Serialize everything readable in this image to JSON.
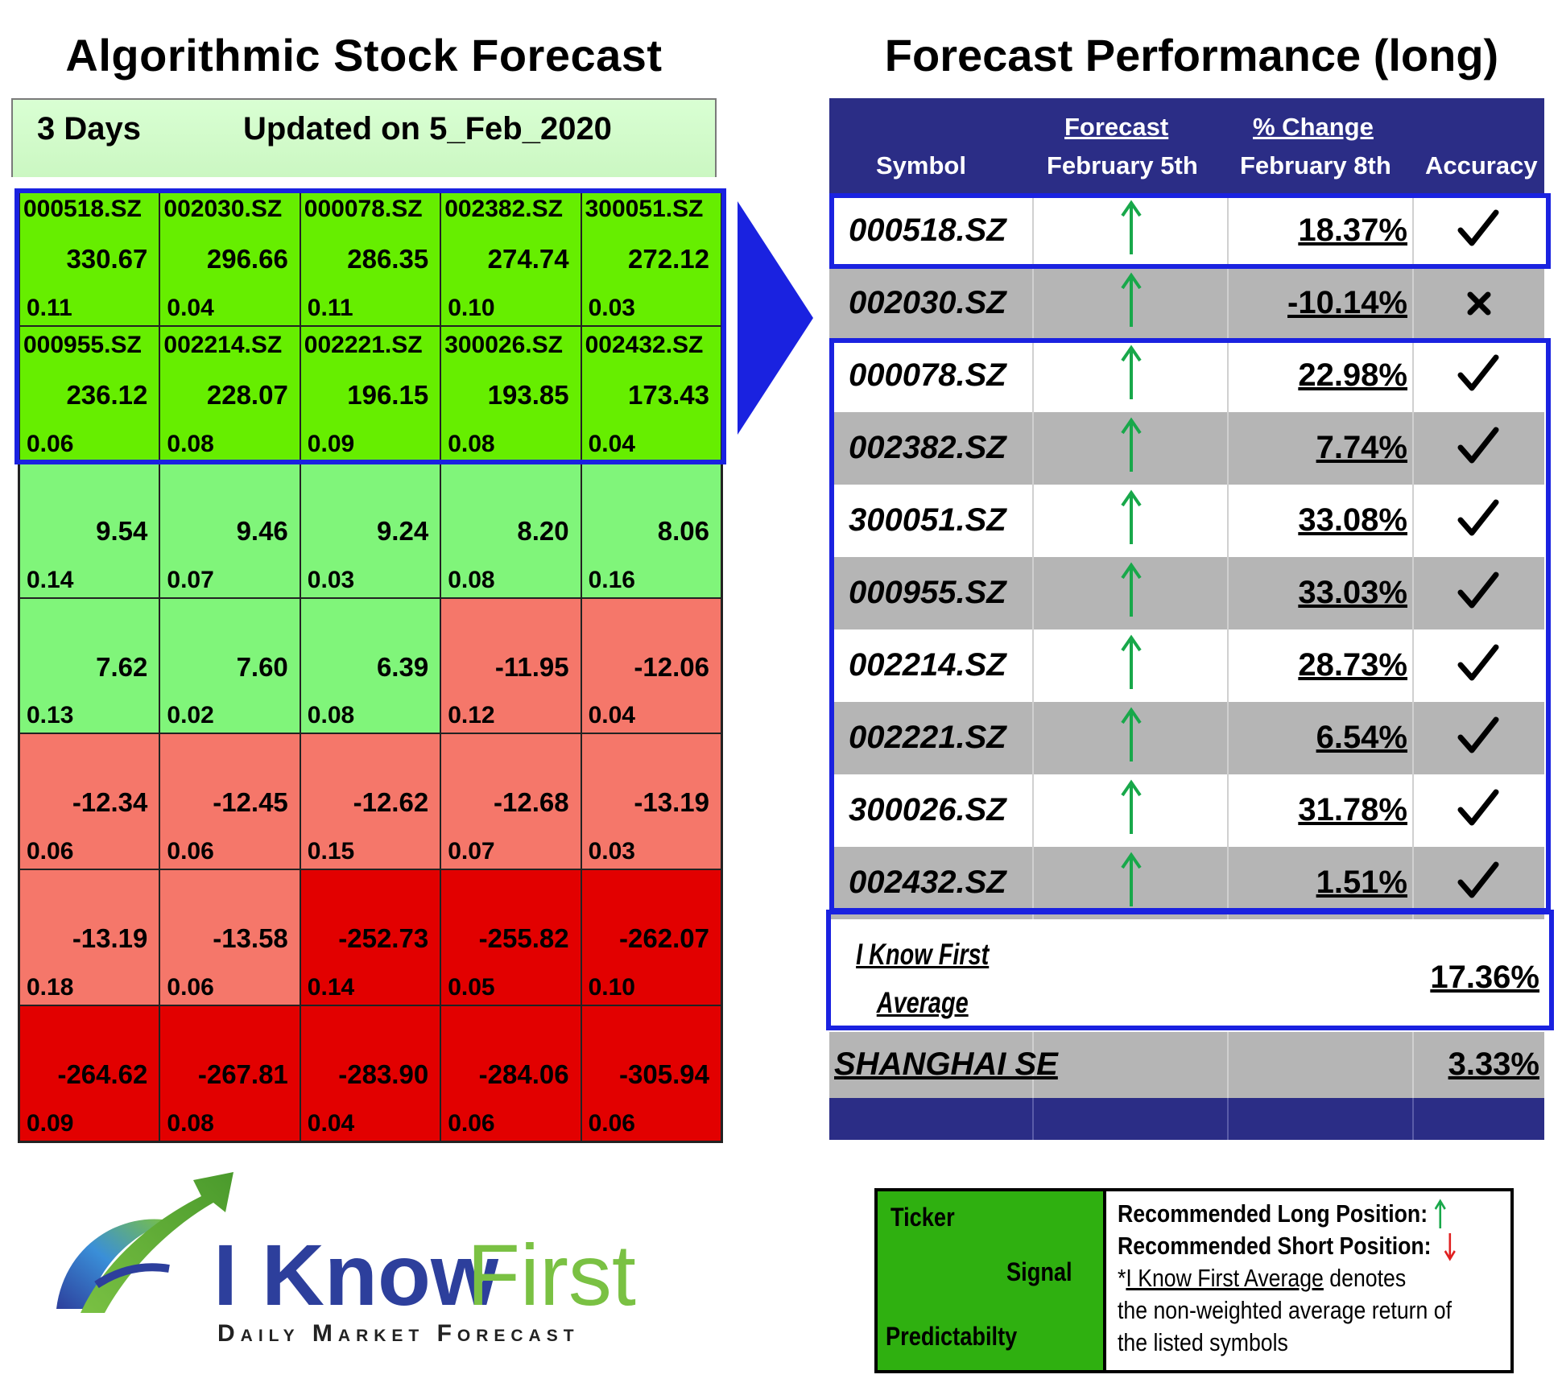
{
  "left": {
    "title": "Algorithmic Stock Forecast",
    "horizon": "3 Days",
    "updated": "Updated on 5_Feb_2020",
    "cells": [
      {
        "ticker": "000518.SZ",
        "signal": "330.67",
        "predictability": "0.11",
        "color": "bright"
      },
      {
        "ticker": "002030.SZ",
        "signal": "296.66",
        "predictability": "0.04",
        "color": "bright"
      },
      {
        "ticker": "000078.SZ",
        "signal": "286.35",
        "predictability": "0.11",
        "color": "bright"
      },
      {
        "ticker": "002382.SZ",
        "signal": "274.74",
        "predictability": "0.10",
        "color": "bright"
      },
      {
        "ticker": "300051.SZ",
        "signal": "272.12",
        "predictability": "0.03",
        "color": "bright"
      },
      {
        "ticker": "000955.SZ",
        "signal": "236.12",
        "predictability": "0.06",
        "color": "bright"
      },
      {
        "ticker": "002214.SZ",
        "signal": "228.07",
        "predictability": "0.08",
        "color": "bright"
      },
      {
        "ticker": "002221.SZ",
        "signal": "196.15",
        "predictability": "0.09",
        "color": "bright"
      },
      {
        "ticker": "300026.SZ",
        "signal": "193.85",
        "predictability": "0.08",
        "color": "bright"
      },
      {
        "ticker": "002432.SZ",
        "signal": "173.43",
        "predictability": "0.04",
        "color": "bright"
      },
      {
        "ticker": "",
        "signal": "9.54",
        "predictability": "0.14",
        "color": "light"
      },
      {
        "ticker": "",
        "signal": "9.46",
        "predictability": "0.07",
        "color": "light"
      },
      {
        "ticker": "",
        "signal": "9.24",
        "predictability": "0.03",
        "color": "light"
      },
      {
        "ticker": "",
        "signal": "8.20",
        "predictability": "0.08",
        "color": "light"
      },
      {
        "ticker": "",
        "signal": "8.06",
        "predictability": "0.16",
        "color": "light"
      },
      {
        "ticker": "",
        "signal": "7.62",
        "predictability": "0.13",
        "color": "light"
      },
      {
        "ticker": "",
        "signal": "7.60",
        "predictability": "0.02",
        "color": "light"
      },
      {
        "ticker": "",
        "signal": "6.39",
        "predictability": "0.08",
        "color": "light"
      },
      {
        "ticker": "",
        "signal": "-11.95",
        "predictability": "0.12",
        "color": "salmon"
      },
      {
        "ticker": "",
        "signal": "-12.06",
        "predictability": "0.04",
        "color": "salmon"
      },
      {
        "ticker": "",
        "signal": "-12.34",
        "predictability": "0.06",
        "color": "salmon"
      },
      {
        "ticker": "",
        "signal": "-12.45",
        "predictability": "0.06",
        "color": "salmon"
      },
      {
        "ticker": "",
        "signal": "-12.62",
        "predictability": "0.15",
        "color": "salmon"
      },
      {
        "ticker": "",
        "signal": "-12.68",
        "predictability": "0.07",
        "color": "salmon"
      },
      {
        "ticker": "",
        "signal": "-13.19",
        "predictability": "0.03",
        "color": "salmon"
      },
      {
        "ticker": "",
        "signal": "-13.19",
        "predictability": "0.18",
        "color": "salmon"
      },
      {
        "ticker": "",
        "signal": "-13.58",
        "predictability": "0.06",
        "color": "salmon"
      },
      {
        "ticker": "",
        "signal": "-252.73",
        "predictability": "0.14",
        "color": "red"
      },
      {
        "ticker": "",
        "signal": "-255.82",
        "predictability": "0.05",
        "color": "red"
      },
      {
        "ticker": "",
        "signal": "-262.07",
        "predictability": "0.10",
        "color": "red"
      },
      {
        "ticker": "",
        "signal": "-264.62",
        "predictability": "0.09",
        "color": "red"
      },
      {
        "ticker": "",
        "signal": "-267.81",
        "predictability": "0.08",
        "color": "red"
      },
      {
        "ticker": "",
        "signal": "-283.90",
        "predictability": "0.04",
        "color": "red"
      },
      {
        "ticker": "",
        "signal": "-284.06",
        "predictability": "0.06",
        "color": "red"
      },
      {
        "ticker": "",
        "signal": "-305.94",
        "predictability": "0.06",
        "color": "red"
      }
    ]
  },
  "right": {
    "title": "Forecast Performance (long)",
    "headers": {
      "symbol": "Symbol",
      "forecast_top": "Forecast",
      "forecast_bottom": "February 5th",
      "change_top": "% Change",
      "change_bottom": "February 8th",
      "accuracy": "Accuracy"
    },
    "rows": [
      {
        "symbol": "000518.SZ",
        "direction": "up",
        "change": "18.37%",
        "accurate": true
      },
      {
        "symbol": "002030.SZ",
        "direction": "up",
        "change": "-10.14%",
        "accurate": false
      },
      {
        "symbol": "000078.SZ",
        "direction": "up",
        "change": "22.98%",
        "accurate": true
      },
      {
        "symbol": "002382.SZ",
        "direction": "up",
        "change": "7.74%",
        "accurate": true
      },
      {
        "symbol": "300051.SZ",
        "direction": "up",
        "change": "33.08%",
        "accurate": true
      },
      {
        "symbol": "000955.SZ",
        "direction": "up",
        "change": "33.03%",
        "accurate": true
      },
      {
        "symbol": "002214.SZ",
        "direction": "up",
        "change": "28.73%",
        "accurate": true
      },
      {
        "symbol": "002221.SZ",
        "direction": "up",
        "change": "6.54%",
        "accurate": true
      },
      {
        "symbol": "300026.SZ",
        "direction": "up",
        "change": "31.78%",
        "accurate": true
      },
      {
        "symbol": "002432.SZ",
        "direction": "up",
        "change": "1.51%",
        "accurate": true
      }
    ],
    "average": {
      "label_line1": "I Know First",
      "label_line2": "Average",
      "change": "17.36%"
    },
    "index": {
      "label": "SHANGHAI SE",
      "change": "3.33%"
    }
  },
  "logo": {
    "word1": "I Know",
    "word2": "First",
    "tagline": "Daily Market Forecast"
  },
  "legend": {
    "ticker": "Ticker",
    "signal": "Signal",
    "predictability": "Predictabilty",
    "long": "Recommended Long Position:",
    "short": "Recommended Short Position:",
    "note_prefix": "*",
    "note_link": "I Know First Average",
    "note_rest1": " denotes",
    "note_line2": "the non-weighted average return of",
    "note_line3": "the listed symbols"
  },
  "colors": {
    "bright_green": "#66ee00",
    "light_green": "#80f57a",
    "salmon": "#f5776a",
    "red": "#e20000",
    "highlight_blue": "#1a22e0",
    "navy": "#2b2d86",
    "arrow_green": "#18a84a"
  },
  "icons": {
    "up": "arrow-up-icon",
    "check": "check-mark-icon",
    "cross": "cross-mark-icon",
    "chevron": "chevron-right-icon"
  }
}
